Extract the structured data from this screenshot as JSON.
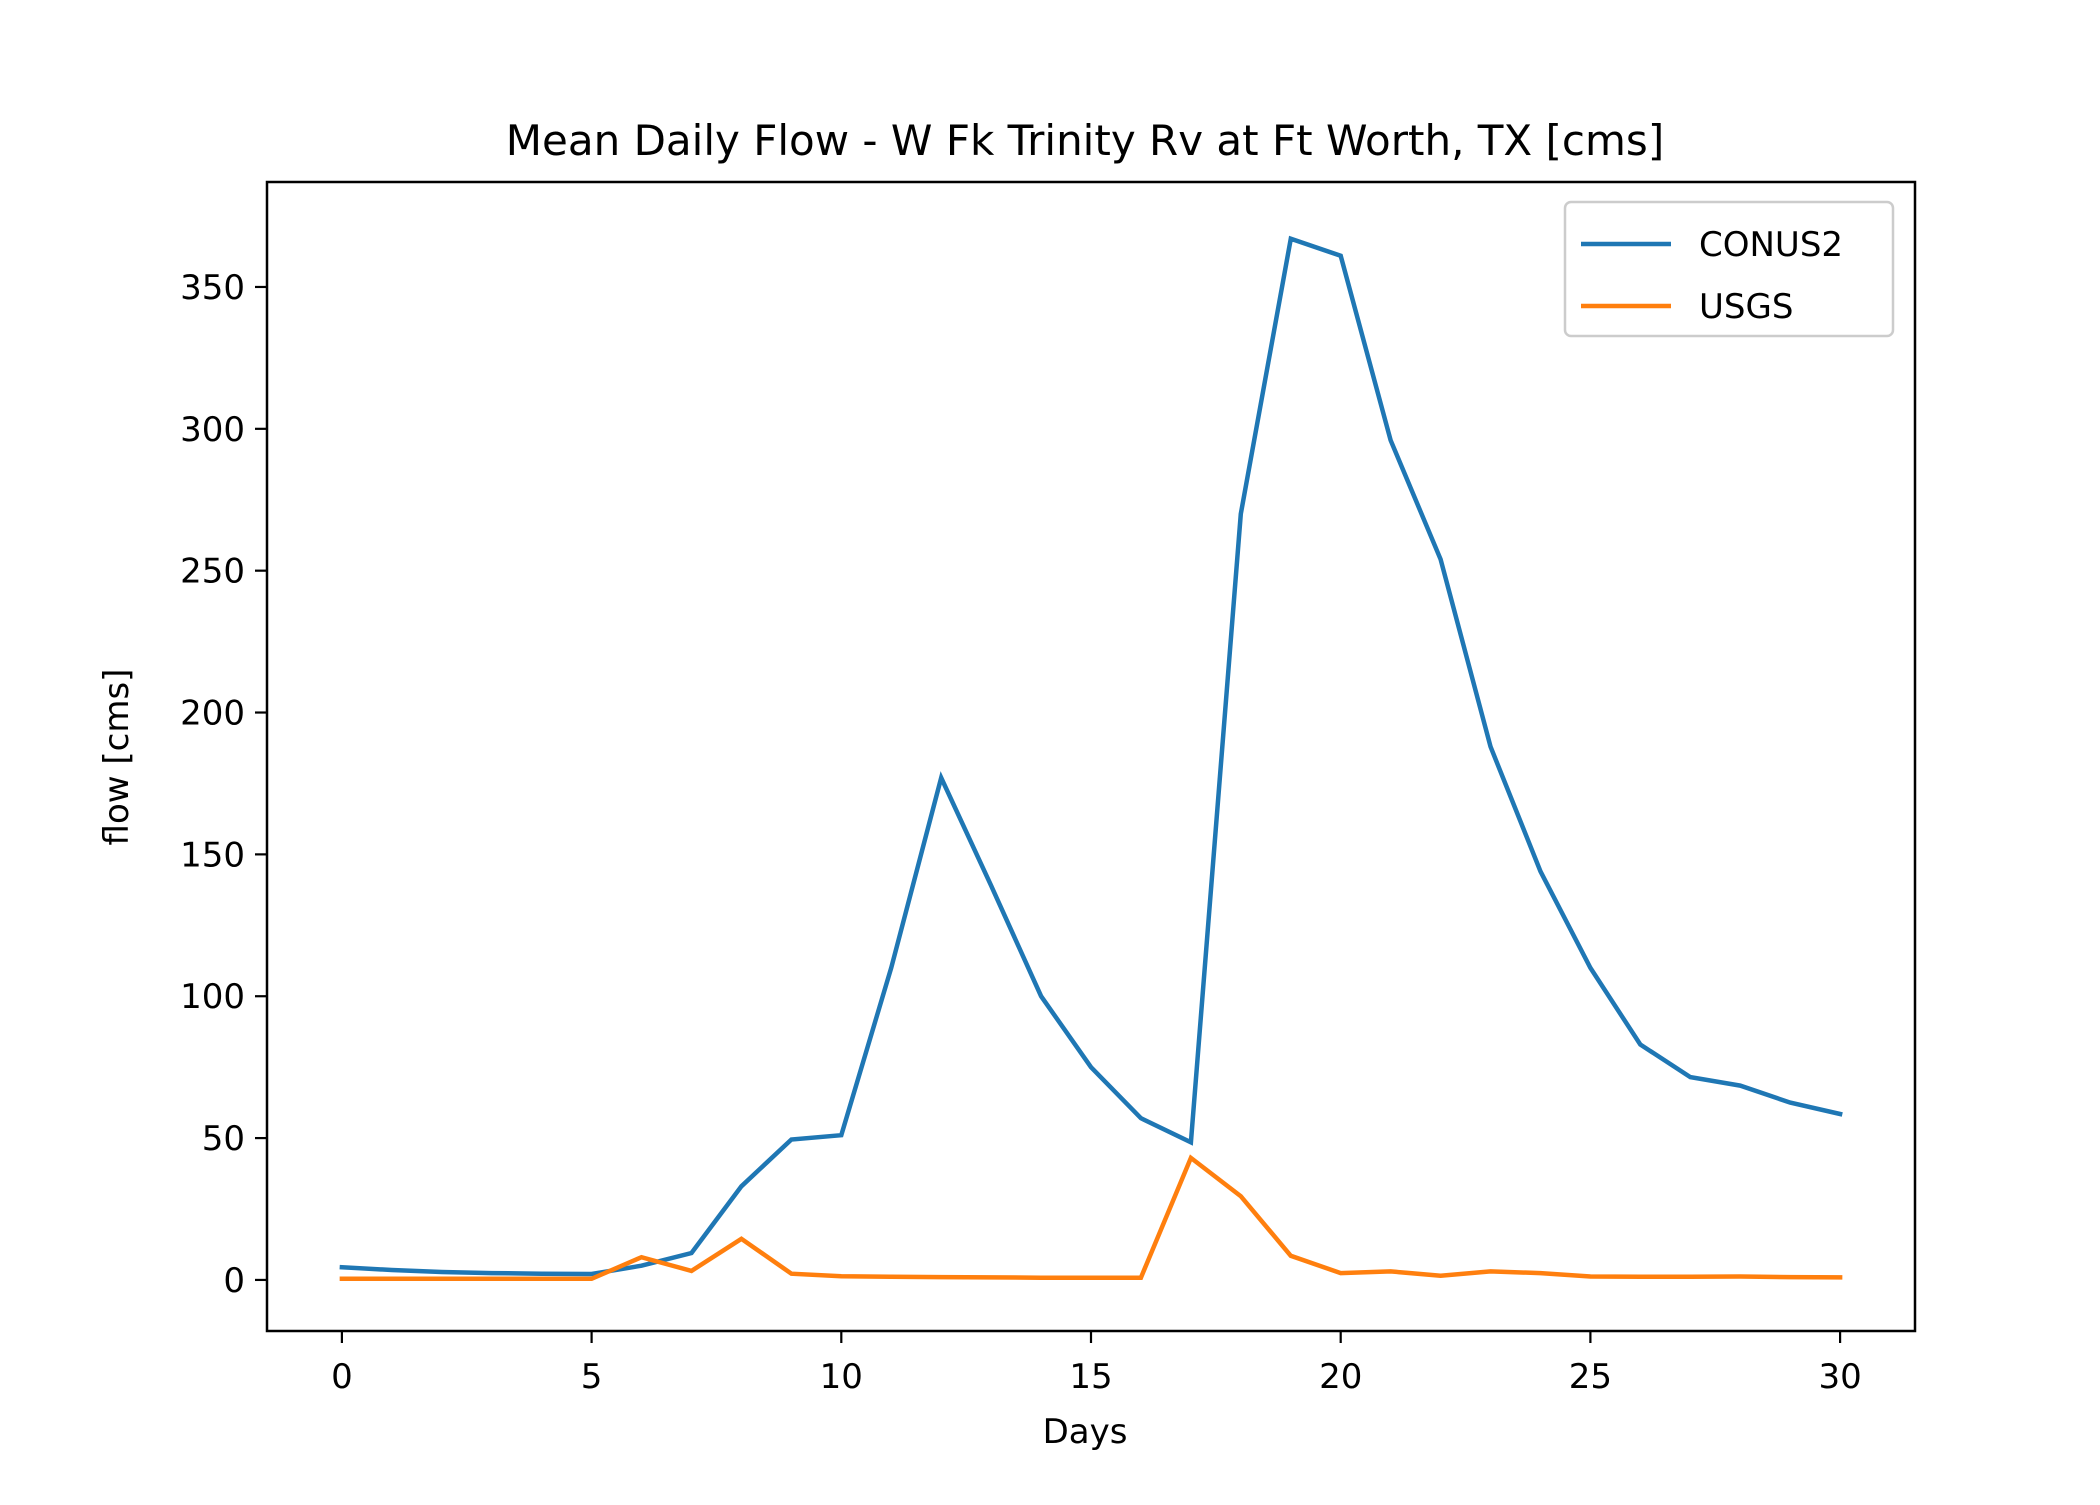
{
  "chart_data": {
    "type": "line",
    "title": "Mean Daily Flow - W Fk Trinity Rv at Ft Worth, TX [cms]",
    "xlabel": "Days",
    "ylabel": "flow [cms]",
    "xlim": [
      -1.5,
      31.5
    ],
    "ylim": [
      -18,
      387
    ],
    "xticks": [
      0,
      5,
      10,
      15,
      20,
      25,
      30
    ],
    "yticks": [
      0,
      50,
      100,
      150,
      200,
      250,
      300,
      350
    ],
    "grid": false,
    "legend_position": "top-right",
    "x": [
      0,
      1,
      2,
      3,
      4,
      5,
      6,
      7,
      8,
      9,
      10,
      11,
      12,
      13,
      14,
      15,
      16,
      17,
      18,
      19,
      20,
      21,
      22,
      23,
      24,
      25,
      26,
      27,
      28,
      29,
      30
    ],
    "series": [
      {
        "name": "CONUS2",
        "color": "#1f77b4",
        "values": [
          4.5,
          3.5,
          2.8,
          2.4,
          2.2,
          2.1,
          5,
          9.5,
          33,
          49.5,
          51,
          110,
          177,
          139,
          100,
          75,
          57,
          48.5,
          270,
          367,
          361,
          296,
          254,
          188,
          144,
          110,
          83,
          71.5,
          68.5,
          62.5,
          58.5
        ]
      },
      {
        "name": "USGS",
        "color": "#ff7f0e",
        "values": [
          0.4,
          0.4,
          0.4,
          0.4,
          0.4,
          0.4,
          8,
          3.2,
          14.5,
          2.2,
          1.3,
          1.1,
          1,
          0.9,
          0.8,
          0.8,
          0.8,
          43,
          29.5,
          8.5,
          2.4,
          3,
          1.5,
          3,
          2.4,
          1.2,
          1.1,
          1.1,
          1.2,
          1,
          0.9
        ]
      }
    ]
  }
}
